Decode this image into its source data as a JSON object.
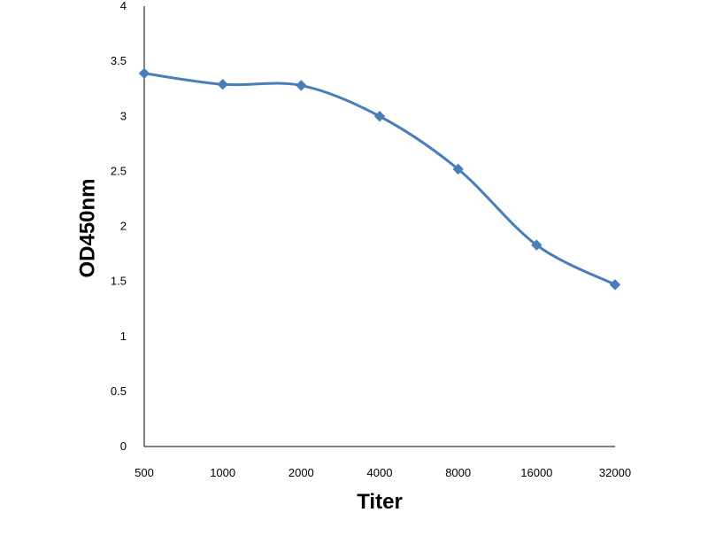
{
  "chart_data": {
    "type": "line",
    "title": "",
    "xlabel": "Titer",
    "ylabel": "OD450nm",
    "categories": [
      "500",
      "1000",
      "2000",
      "4000",
      "8000",
      "16000",
      "32000"
    ],
    "y_ticks": [
      "0",
      "0.5",
      "1",
      "1.5",
      "2",
      "2.5",
      "3",
      "3.5",
      "4"
    ],
    "ylim": [
      0,
      4
    ],
    "grid": false,
    "legend": "none",
    "line_style": "smooth",
    "marker": "diamond",
    "series": [
      {
        "values": [
          3.39,
          3.29,
          3.28,
          3.0,
          2.52,
          1.83,
          1.47
        ],
        "color": "#4a7ebb"
      }
    ]
  }
}
